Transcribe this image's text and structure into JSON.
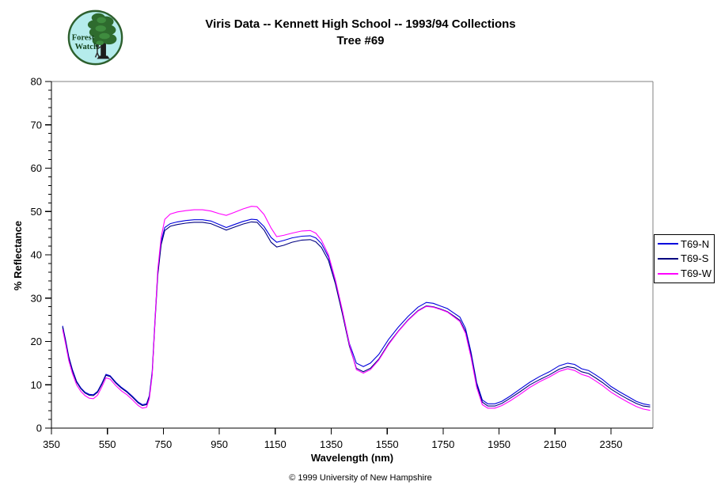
{
  "header": {
    "title_line1": "Viris Data -- Kennett High School -- 1993/94 Collections",
    "title_line2": "Tree #69"
  },
  "logo": {
    "name": "Forest Watch logo",
    "text_line1": "Forest",
    "text_line2": "Watch",
    "bg_color": "#b5ecec",
    "ring_color": "#2d5f2d",
    "foliage_color": "#2e6b2e",
    "foliage_color2": "#3f8c3f",
    "trunk_color": "#1d1d1d"
  },
  "footer": {
    "copyright": "© 1999 University of New Hampshire"
  },
  "chart_data": {
    "type": "line",
    "title": "Viris Data -- Kennett High School -- 1993/94 Collections Tree #69",
    "xlabel": "Wavelength (nm)",
    "ylabel": "% Reflectance",
    "x_range": [
      350,
      2500
    ],
    "y_range": [
      0,
      80
    ],
    "x_ticks": [
      350,
      550,
      750,
      950,
      1150,
      1350,
      1550,
      1750,
      1950,
      2150,
      2350
    ],
    "y_ticks": [
      0,
      10,
      20,
      30,
      40,
      50,
      60,
      70,
      80
    ],
    "y_minor_step": 2,
    "grid": "off",
    "legend_position": "right-outside",
    "axis_color": "#000000",
    "frame_color": "#808080",
    "x": [
      390,
      400,
      412,
      425,
      440,
      455,
      470,
      485,
      500,
      515,
      530,
      545,
      560,
      580,
      600,
      620,
      640,
      660,
      675,
      690,
      700,
      710,
      720,
      730,
      742,
      755,
      775,
      800,
      830,
      860,
      890,
      920,
      950,
      975,
      1000,
      1035,
      1065,
      1085,
      1110,
      1135,
      1155,
      1180,
      1210,
      1245,
      1275,
      1295,
      1315,
      1340,
      1365,
      1390,
      1415,
      1440,
      1465,
      1490,
      1520,
      1555,
      1590,
      1625,
      1660,
      1690,
      1715,
      1740,
      1765,
      1790,
      1810,
      1830,
      1850,
      1870,
      1890,
      1910,
      1935,
      1960,
      1990,
      2025,
      2060,
      2095,
      2130,
      2165,
      2195,
      2220,
      2245,
      2270,
      2295,
      2320,
      2350,
      2380,
      2410,
      2440,
      2465,
      2490
    ],
    "series": [
      {
        "name": "T69-N",
        "color": "#0000dd",
        "values": [
          23.6,
          20.5,
          16.5,
          13.5,
          10.8,
          9.3,
          8.3,
          7.8,
          7.7,
          8.5,
          10.3,
          12.4,
          12.1,
          10.6,
          9.4,
          8.5,
          7.3,
          6.0,
          5.4,
          5.6,
          7.5,
          13.0,
          25.0,
          36.0,
          43.0,
          46.3,
          47.2,
          47.6,
          47.9,
          48.1,
          48.1,
          47.8,
          47.0,
          46.3,
          46.9,
          47.7,
          48.2,
          48.1,
          46.5,
          44.0,
          42.9,
          43.3,
          43.9,
          44.3,
          44.4,
          43.9,
          42.6,
          39.5,
          34.0,
          27.0,
          19.5,
          15.0,
          14.2,
          15.0,
          17.0,
          20.5,
          23.3,
          25.8,
          27.9,
          29.0,
          28.8,
          28.2,
          27.6,
          26.5,
          25.6,
          23.0,
          17.5,
          10.5,
          6.5,
          5.6,
          5.6,
          6.2,
          7.4,
          9.0,
          10.6,
          11.9,
          13.0,
          14.4,
          15.0,
          14.7,
          13.7,
          13.3,
          12.3,
          11.2,
          9.6,
          8.4,
          7.3,
          6.2,
          5.6,
          5.3
        ]
      },
      {
        "name": "T69-S",
        "color": "#000080",
        "values": [
          23.3,
          20.2,
          16.2,
          13.2,
          10.6,
          9.1,
          8.1,
          7.6,
          7.5,
          8.3,
          10.1,
          12.2,
          11.9,
          10.4,
          9.2,
          8.3,
          7.1,
          5.8,
          5.2,
          5.4,
          7.2,
          12.5,
          24.2,
          35.2,
          42.3,
          45.6,
          46.6,
          47.0,
          47.3,
          47.5,
          47.5,
          47.2,
          46.4,
          45.7,
          46.3,
          47.1,
          47.6,
          47.5,
          45.7,
          42.9,
          41.8,
          42.2,
          42.9,
          43.4,
          43.5,
          43.0,
          41.7,
          38.7,
          33.3,
          26.4,
          18.9,
          13.8,
          13.0,
          13.8,
          15.9,
          19.5,
          22.4,
          25.0,
          27.1,
          28.2,
          28.0,
          27.5,
          26.9,
          25.8,
          24.9,
          22.3,
          16.9,
          10.0,
          6.0,
          5.1,
          5.1,
          5.7,
          6.9,
          8.4,
          10.0,
          11.2,
          12.3,
          13.6,
          14.2,
          13.9,
          13.0,
          12.6,
          11.6,
          10.5,
          9.0,
          7.8,
          6.7,
          5.7,
          5.1,
          4.9
        ]
      },
      {
        "name": "T69-W",
        "color": "#ff00ff",
        "values": [
          22.8,
          19.6,
          15.6,
          12.6,
          10.0,
          8.5,
          7.5,
          6.9,
          6.8,
          7.6,
          9.5,
          11.6,
          11.3,
          9.8,
          8.6,
          7.7,
          6.5,
          5.2,
          4.6,
          4.8,
          6.8,
          12.2,
          24.5,
          36.5,
          44.0,
          48.2,
          49.4,
          49.9,
          50.2,
          50.4,
          50.4,
          50.1,
          49.5,
          49.1,
          49.7,
          50.6,
          51.2,
          51.1,
          49.3,
          46.2,
          44.2,
          44.5,
          45.0,
          45.5,
          45.6,
          45.0,
          43.4,
          40.0,
          34.2,
          27.2,
          19.3,
          13.5,
          12.7,
          13.5,
          15.7,
          19.3,
          22.3,
          24.9,
          27.0,
          28.1,
          27.9,
          27.4,
          26.8,
          25.6,
          24.6,
          21.9,
          16.3,
          9.4,
          5.4,
          4.6,
          4.6,
          5.2,
          6.3,
          7.8,
          9.4,
          10.7,
          11.8,
          13.1,
          13.7,
          13.3,
          12.4,
          11.9,
          10.9,
          9.8,
          8.3,
          7.1,
          6.0,
          5.0,
          4.4,
          4.1
        ]
      }
    ]
  }
}
